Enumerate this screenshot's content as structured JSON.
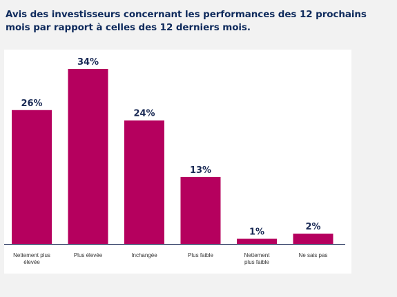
{
  "title": "Avis des investisseurs concernant les performances des 12 prochains mois par rapport à celles des 12 derniers mois.",
  "colors": {
    "bar": "#b5005e",
    "title": "#0e2a5c",
    "value_label": "#1a2a55",
    "background": "#f2f2f2",
    "panel": "#ffffff"
  },
  "chart_data": {
    "type": "bar",
    "title": "Avis des investisseurs concernant les performances des 12 prochains mois par rapport à celles des 12 derniers mois.",
    "xlabel": "",
    "ylabel": "",
    "categories": [
      [
        "Nettement plus",
        "élevée"
      ],
      [
        "Plus élevée"
      ],
      [
        "Inchangée"
      ],
      [
        "Plus faible"
      ],
      [
        "Nettement",
        "plus faible"
      ],
      [
        "Ne sais pas"
      ]
    ],
    "values": [
      26,
      34,
      24,
      13,
      1,
      2
    ],
    "value_labels": [
      "26%",
      "34%",
      "24%",
      "13%",
      "1%",
      "2%"
    ],
    "unit": "%",
    "ylim": [
      0,
      34
    ],
    "grid": false,
    "legend": "none"
  }
}
